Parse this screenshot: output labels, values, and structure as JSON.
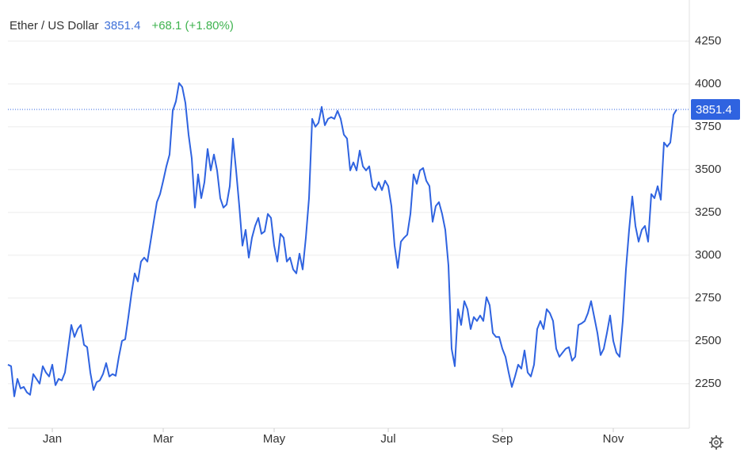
{
  "chart_data": {
    "type": "line",
    "title": "Ether / US Dollar",
    "last": 3851.4,
    "change": "+68.1 (+1.80%)",
    "xlim": [
      0,
      214.5
    ],
    "ylim": [
      1990,
      4490
    ],
    "yticks": [
      2250,
      2500,
      2750,
      3000,
      3250,
      3500,
      3750,
      4000,
      4250
    ],
    "xticks": [
      {
        "value": 14,
        "label": "Jan"
      },
      {
        "value": 49,
        "label": "Mar"
      },
      {
        "value": 84,
        "label": "May"
      },
      {
        "value": 120,
        "label": "Jul"
      },
      {
        "value": 156,
        "label": "Sep"
      },
      {
        "value": 191,
        "label": "Nov"
      }
    ],
    "grid": true,
    "x": [
      0,
      1,
      2,
      3,
      4,
      5,
      6,
      7,
      8,
      9,
      10,
      11,
      12,
      13,
      14,
      15,
      16,
      17,
      18,
      19,
      20,
      21,
      22,
      23,
      24,
      25,
      26,
      27,
      28,
      29,
      30,
      31,
      32,
      33,
      34,
      35,
      36,
      37,
      38,
      39,
      40,
      41,
      42,
      43,
      44,
      45,
      46,
      47,
      48,
      49,
      50,
      51,
      52,
      53,
      54,
      55,
      56,
      57,
      58,
      59,
      60,
      61,
      62,
      63,
      64,
      65,
      66,
      67,
      68,
      69,
      70,
      71,
      72,
      73,
      74,
      75,
      76,
      77,
      78,
      79,
      80,
      81,
      82,
      83,
      84,
      85,
      86,
      87,
      88,
      89,
      90,
      91,
      92,
      93,
      94,
      95,
      96,
      97,
      98,
      99,
      100,
      101,
      102,
      103,
      104,
      105,
      106,
      107,
      108,
      109,
      110,
      111,
      112,
      113,
      114,
      115,
      116,
      117,
      118,
      119,
      120,
      121,
      122,
      123,
      124,
      125,
      126,
      127,
      128,
      129,
      130,
      131,
      132,
      133,
      134,
      135,
      136,
      137,
      138,
      139,
      140,
      141,
      142,
      143,
      144,
      145,
      146,
      147,
      148,
      149,
      150,
      151,
      152,
      153,
      154,
      155,
      156,
      157,
      158,
      159,
      160,
      161,
      162,
      163,
      164,
      165,
      166,
      167,
      168,
      169,
      170,
      171,
      172,
      173,
      174,
      175,
      176,
      177,
      178,
      179,
      180,
      181,
      182,
      183,
      184,
      185,
      186,
      187,
      188,
      189,
      190,
      191,
      192,
      193,
      194,
      195,
      196,
      197,
      198,
      199,
      200,
      201,
      202,
      203,
      204,
      205,
      206,
      207,
      208,
      209,
      210,
      211
    ],
    "series": [
      {
        "name": "Ether / US Dollar",
        "color": "#2f63e0",
        "values": [
          2361,
          2352,
          2176,
          2278,
          2222,
          2231,
          2199,
          2185,
          2306,
          2278,
          2250,
          2352,
          2315,
          2292,
          2361,
          2241,
          2278,
          2269,
          2315,
          2454,
          2593,
          2523,
          2569,
          2593,
          2477,
          2463,
          2315,
          2213,
          2259,
          2269,
          2306,
          2370,
          2292,
          2306,
          2296,
          2407,
          2500,
          2509,
          2639,
          2778,
          2894,
          2847,
          2963,
          2986,
          2963,
          3079,
          3195,
          3310,
          3357,
          3435,
          3519,
          3588,
          3843,
          3898,
          4005,
          3982,
          3889,
          3704,
          3565,
          3278,
          3472,
          3333,
          3426,
          3620,
          3495,
          3588,
          3495,
          3333,
          3278,
          3296,
          3403,
          3681,
          3495,
          3287,
          3056,
          3148,
          2986,
          3102,
          3171,
          3218,
          3125,
          3139,
          3241,
          3218,
          3056,
          2963,
          3125,
          3102,
          2963,
          2986,
          2917,
          2894,
          3009,
          2917,
          3102,
          3333,
          3796,
          3750,
          3773,
          3866,
          3759,
          3796,
          3806,
          3796,
          3843,
          3796,
          3704,
          3681,
          3495,
          3542,
          3495,
          3611,
          3519,
          3495,
          3519,
          3403,
          3380,
          3426,
          3380,
          3435,
          3403,
          3287,
          3056,
          2926,
          3079,
          3102,
          3120,
          3241,
          3472,
          3417,
          3495,
          3509,
          3435,
          3403,
          3195,
          3287,
          3310,
          3241,
          3148,
          2940,
          2454,
          2352,
          2685,
          2593,
          2732,
          2685,
          2569,
          2639,
          2616,
          2648,
          2616,
          2755,
          2708,
          2546,
          2523,
          2523,
          2454,
          2407,
          2315,
          2231,
          2292,
          2361,
          2338,
          2444,
          2315,
          2292,
          2361,
          2569,
          2616,
          2569,
          2685,
          2662,
          2616,
          2454,
          2407,
          2431,
          2454,
          2463,
          2384,
          2407,
          2593,
          2602,
          2616,
          2662,
          2732,
          2639,
          2546,
          2417,
          2454,
          2546,
          2648,
          2500,
          2431,
          2407,
          2616,
          2917,
          3148,
          3343,
          3171,
          3079,
          3148,
          3171,
          3079,
          3357,
          3333,
          3403,
          3324,
          3658,
          3634,
          3658,
          3820,
          3851.4
        ]
      }
    ]
  }
}
